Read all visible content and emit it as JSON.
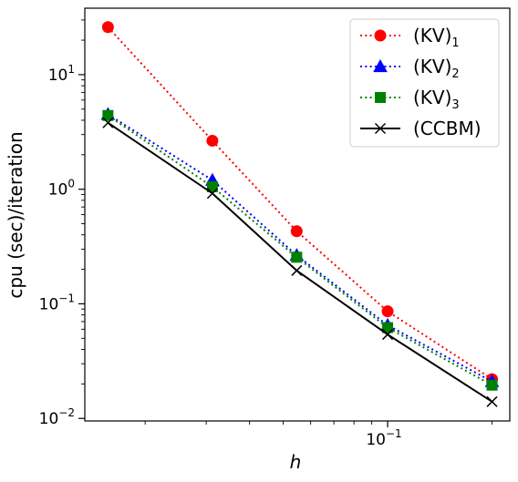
{
  "chart_data": {
    "type": "line",
    "xscale": "log",
    "yscale": "log",
    "xlabel": "h",
    "ylabel": "cpu (sec)/iteration",
    "xlim": [
      0.0134,
      0.225
    ],
    "ylim": [
      0.0095,
      38
    ],
    "grid": false,
    "legend": "top-right",
    "x": [
      0.015625,
      0.03125,
      0.0546875,
      0.1,
      0.2
    ],
    "x_ticks": [
      {
        "value": 0.1,
        "base": "10",
        "exp": "−1"
      }
    ],
    "y_ticks": [
      {
        "value": 0.01,
        "base": "10",
        "exp": "−2"
      },
      {
        "value": 0.1,
        "base": "10",
        "exp": "−1"
      },
      {
        "value": 1,
        "base": "10",
        "exp": "0"
      },
      {
        "value": 10,
        "base": "10",
        "exp": "1"
      }
    ],
    "series": [
      {
        "name": "(KV)",
        "sub": "1",
        "color": "#ff0000",
        "marker": "circle",
        "dash": "dotted",
        "values": [
          26.0,
          2.65,
          0.43,
          0.086,
          0.022
        ]
      },
      {
        "name": "(KV)",
        "sub": "2",
        "color": "#0000ff",
        "marker": "triangle",
        "dash": "dotted",
        "values": [
          4.5,
          1.2,
          0.265,
          0.065,
          0.021
        ]
      },
      {
        "name": "(KV)",
        "sub": "3",
        "color": "#008000",
        "marker": "square",
        "dash": "dotted",
        "values": [
          4.4,
          1.05,
          0.255,
          0.062,
          0.0195
        ]
      },
      {
        "name": "(CCBM)",
        "sub": "",
        "color": "#000000",
        "marker": "x",
        "dash": "solid",
        "values": [
          3.8,
          0.92,
          0.195,
          0.054,
          0.014
        ]
      }
    ]
  }
}
